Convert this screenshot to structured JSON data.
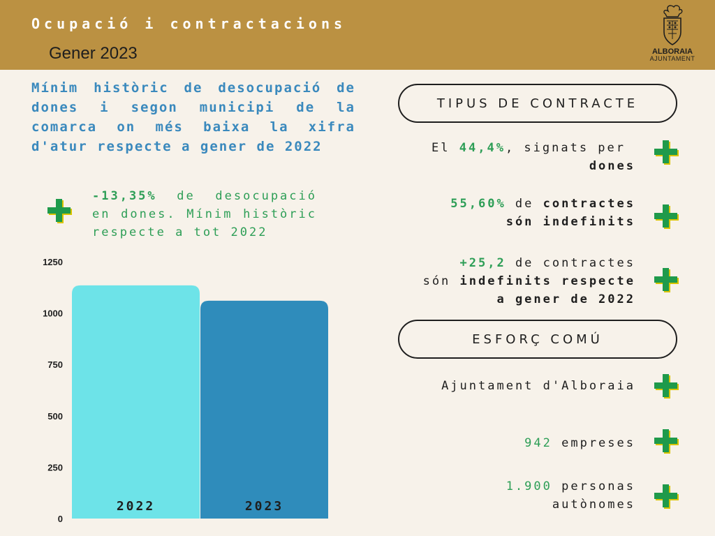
{
  "header": {
    "title": "Ocupació i contractacions",
    "subtitle": "Gener 2023",
    "logo_name": "ALBORAIA",
    "logo_sub": "AJUNTAMENT"
  },
  "lead": "Mínim històric de desocupació de dones i segon municipi de la comarca on més baixa la xifra d'atur respecte a gener de 2022",
  "stat": {
    "highlight": "-13,35%",
    "text": " de desocupació en dones. Mínim històric respecte a tot 2022"
  },
  "chart_data": {
    "type": "bar",
    "categories": [
      "2022",
      "2023"
    ],
    "values": [
      1135,
      1060
    ],
    "ylim": [
      0,
      1250
    ],
    "yticks": [
      "0",
      "250",
      "500",
      "750",
      "1000",
      "1250"
    ],
    "colors": [
      "#6de3e8",
      "#2f8cbb"
    ],
    "grid": false
  },
  "contract": {
    "header": "TIPUS DE CONTRACTE",
    "item1": {
      "pre": "El ",
      "value": "44,4%",
      "mid": ", signats per",
      "bold": "dones"
    },
    "item2": {
      "value": "55,60%",
      "mid": " de ",
      "bold1": "contractes",
      "bold2": "són indefinits"
    },
    "item3": {
      "value": "+25,2",
      "mid": " de contractes",
      "pre2": "són ",
      "bold1": "indefinits respecte",
      "bold2": "a gener de 2022"
    }
  },
  "effort": {
    "header": "ESFORÇ COMÚ",
    "item1": "Ajuntament d'Alboraia",
    "item2": {
      "value": "942",
      "text": " empreses"
    },
    "item3": {
      "value": "1.900",
      "text": " personas",
      "line2": "autònomes"
    }
  },
  "colors": {
    "gold": "#bb9142",
    "blue": "#3a89bd",
    "green": "#2d9e56",
    "icon_green": "#1f9a4b",
    "icon_shadow": "#d8c400"
  },
  "icon": "plus-icon"
}
